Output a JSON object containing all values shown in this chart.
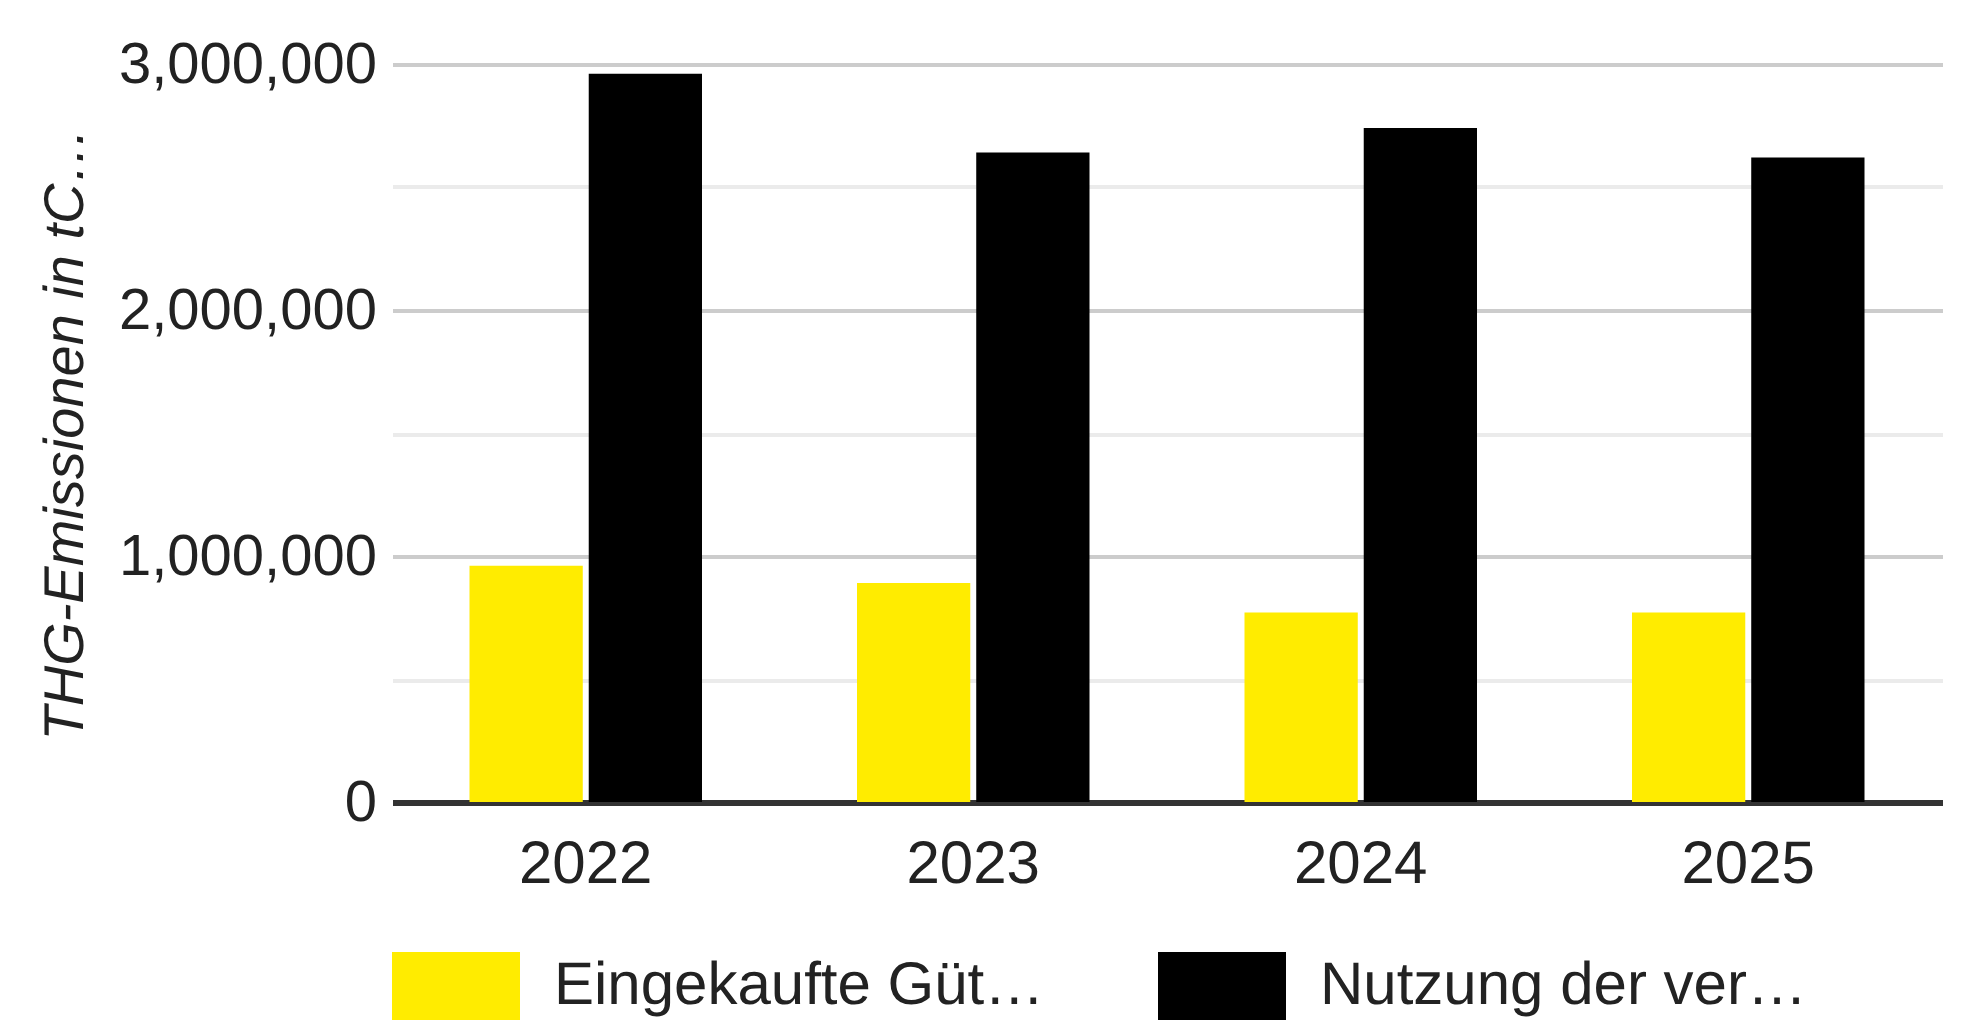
{
  "chart_data": {
    "type": "bar",
    "ylabel": "THG-Emissionen in tC…",
    "categories": [
      "2022",
      "2023",
      "2024",
      "2025"
    ],
    "series": [
      {
        "name": "Eingekaufte Güt…",
        "color": "#ffec00",
        "values": [
          960000,
          890000,
          770000,
          770000
        ]
      },
      {
        "name": "Nutzung der ver…",
        "color": "#000000",
        "values": [
          2960000,
          2640000,
          2740000,
          2620000
        ]
      }
    ],
    "ylim": [
      0,
      3000000
    ],
    "yticks": [
      {
        "value": 0,
        "label": "0"
      },
      {
        "value": 500000,
        "label": null
      },
      {
        "value": 1000000,
        "label": "1,000,000"
      },
      {
        "value": 1500000,
        "label": null
      },
      {
        "value": 2000000,
        "label": "2,000,000"
      },
      {
        "value": 2500000,
        "label": null
      },
      {
        "value": 3000000,
        "label": "3,000,000"
      }
    ],
    "grid": "y",
    "legend": "bottom"
  }
}
